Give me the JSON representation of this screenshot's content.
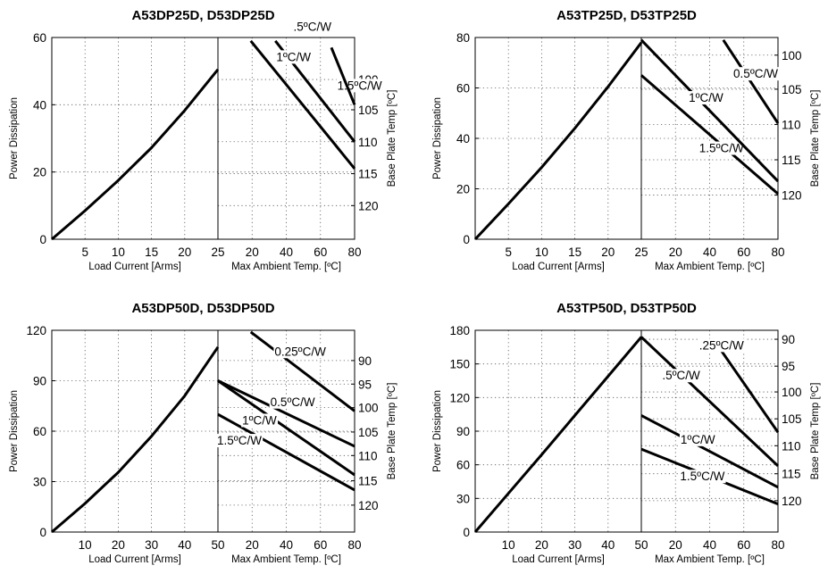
{
  "chart_data": [
    {
      "type": "line",
      "title": "A53DP25D, D53DP25D",
      "ylabel": "Power Dissipation",
      "xlabel_left": "Load Current  [Arms]",
      "xlabel_right": "Max Ambient Temp. [ºC]",
      "ylabel_right": "Base Plate Temp [ºC]",
      "ylim": [
        0,
        60
      ],
      "yticks": [
        "0",
        "20",
        "40",
        "60"
      ],
      "current_max": 25,
      "current_ticks": [
        "5",
        "10",
        "15",
        "20",
        "25"
      ],
      "ambient_ticks": [
        "20",
        "40",
        "60",
        "80"
      ],
      "baseplate_ticks": [
        {
          "label": "100",
          "y": 47.5
        },
        {
          "label": "105",
          "y": 38.5
        },
        {
          "label": "110",
          "y": 29
        },
        {
          "label": "115",
          "y": 19.5
        },
        {
          "label": "120",
          "y": 10
        }
      ],
      "dissipation_curve": {
        "x": [
          0,
          5,
          10,
          15,
          20,
          25
        ],
        "y": [
          0,
          8.5,
          17.5,
          27.2,
          38.3,
          50.5
        ]
      },
      "derating_lines": [
        {
          "label": "1.5ºC/W",
          "label_at": [
            1.2,
            44.5
          ],
          "start": [
            0.24,
            59
          ],
          "end": [
            1.0,
            21
          ]
        },
        {
          "label": "1ºC/W",
          "label_at": [
            0.68,
            53
          ],
          "start": [
            0.42,
            59
          ],
          "end": [
            1.0,
            29
          ]
        },
        {
          "label": ".5ºC/W",
          "label_at": [
            0.83,
            62
          ],
          "start": [
            0.83,
            57
          ],
          "end": [
            1.0,
            40
          ]
        }
      ]
    },
    {
      "type": "line",
      "title": "A53TP25D, D53TP25D",
      "ylabel": "Power Dissipation",
      "xlabel_left": "Load Current  [Arms]",
      "xlabel_right": "Max Ambient Temp. [ºC]",
      "ylabel_right": "Base Plate Temp [ºC]",
      "ylim": [
        0,
        80
      ],
      "yticks": [
        "0",
        "20",
        "40",
        "60",
        "80"
      ],
      "current_max": 25,
      "current_ticks": [
        "5",
        "10",
        "15",
        "20",
        "25"
      ],
      "ambient_ticks": [
        "20",
        "40",
        "60",
        "80"
      ],
      "baseplate_ticks": [
        {
          "label": "100",
          "y": 73
        },
        {
          "label": "105",
          "y": 59.5
        },
        {
          "label": "110",
          "y": 45.5
        },
        {
          "label": "115",
          "y": 31.5
        },
        {
          "label": "120",
          "y": 17.5
        }
      ],
      "dissipation_curve": {
        "x": [
          0,
          5,
          10,
          15,
          20,
          25
        ],
        "y": [
          0,
          14,
          28.5,
          44,
          60.5,
          78
        ]
      },
      "derating_lines": [
        {
          "label": "1.5ºC/W",
          "label_at": [
            0.75,
            34.5
          ],
          "start": [
            0,
            65
          ],
          "end": [
            1.0,
            18
          ]
        },
        {
          "label": "1ºC/W",
          "label_at": [
            0.6,
            54.5
          ],
          "start": [
            0,
            79
          ],
          "end": [
            1.0,
            23
          ]
        },
        {
          "label": "0.5ºC/W",
          "label_at": [
            1.0,
            64
          ],
          "start": [
            0.6,
            79
          ],
          "end": [
            1.0,
            46
          ]
        }
      ]
    },
    {
      "type": "line",
      "title": "A53DP50D, D53DP50D",
      "ylabel": "Power Dissipation",
      "xlabel_left": "Load Current  [Arms]",
      "xlabel_right": "Max Ambient Temp. [ºC]",
      "ylabel_right": "Base Plate Temp [ºC]",
      "ylim": [
        0,
        120
      ],
      "yticks": [
        "0",
        "30",
        "60",
        "90",
        "120"
      ],
      "current_max": 50,
      "current_ticks": [
        "10",
        "20",
        "30",
        "40",
        "50"
      ],
      "ambient_ticks": [
        "20",
        "40",
        "60",
        "80"
      ],
      "baseplate_ticks": [
        {
          "label": "90",
          "y": 102
        },
        {
          "label": "95",
          "y": 88
        },
        {
          "label": "100",
          "y": 74
        },
        {
          "label": "105",
          "y": 59.5
        },
        {
          "label": "110",
          "y": 45.5
        },
        {
          "label": "115",
          "y": 30.5
        },
        {
          "label": "120",
          "y": 16
        }
      ],
      "dissipation_curve": {
        "x": [
          0,
          10,
          20,
          30,
          40,
          50
        ],
        "y": [
          0,
          17,
          35.5,
          57,
          81,
          110
        ]
      },
      "derating_lines": [
        {
          "label": "1.5ºC/W",
          "label_at": [
            0.32,
            52
          ],
          "start": [
            0,
            70
          ],
          "end": [
            1.0,
            25
          ]
        },
        {
          "label": "1ºC/W",
          "label_at": [
            0.43,
            64
          ],
          "start": [
            0,
            90
          ],
          "end": [
            1.0,
            34
          ]
        },
        {
          "label": "0.5ºC/W",
          "label_at": [
            0.71,
            75
          ],
          "start": [
            0,
            90
          ],
          "end": [
            1.0,
            51
          ]
        },
        {
          "label": "0.25ºC/W",
          "label_at": [
            0.79,
            105
          ],
          "start": [
            0.24,
            119
          ],
          "end": [
            1.0,
            72
          ]
        }
      ]
    },
    {
      "type": "line",
      "title": "A53TP50D, D53TP50D",
      "ylabel": "Power Dissipation",
      "xlabel_left": "Load Current  [Arms]",
      "xlabel_right": "Max Ambient Temp. [ºC]",
      "ylabel_right": "Base Plate Temp [ºC]",
      "ylim": [
        0,
        180
      ],
      "yticks": [
        "0",
        "30",
        "60",
        "90",
        "120",
        "150",
        "180"
      ],
      "current_max": 50,
      "current_ticks": [
        "10",
        "20",
        "30",
        "40",
        "50"
      ],
      "ambient_ticks": [
        "20",
        "40",
        "60",
        "80"
      ],
      "baseplate_ticks": [
        {
          "label": "90",
          "y": 172
        },
        {
          "label": "95",
          "y": 148
        },
        {
          "label": "100",
          "y": 125
        },
        {
          "label": "105",
          "y": 101
        },
        {
          "label": "110",
          "y": 77
        },
        {
          "label": "115",
          "y": 52
        },
        {
          "label": "120",
          "y": 28
        }
      ],
      "dissipation_curve": {
        "x": [
          0,
          10,
          20,
          30,
          40,
          50
        ],
        "y": [
          0,
          34.5,
          69,
          104,
          139,
          174
        ]
      },
      "derating_lines": [
        {
          "label": "1.5ºC/W",
          "label_at": [
            0.61,
            46
          ],
          "start": [
            0,
            74
          ],
          "end": [
            1.0,
            25
          ]
        },
        {
          "label": "1ºC/W",
          "label_at": [
            0.54,
            79
          ],
          "start": [
            0,
            104
          ],
          "end": [
            1.0,
            40
          ]
        },
        {
          "label": ".5ºC/W",
          "label_at": [
            0.43,
            136
          ],
          "start": [
            0,
            174
          ],
          "end": [
            1.0,
            59
          ]
        },
        {
          "label": ".25ºC/W",
          "label_at": [
            0.75,
            163
          ],
          "start": [
            0.55,
            168
          ],
          "end": [
            1.0,
            89
          ]
        }
      ]
    }
  ]
}
